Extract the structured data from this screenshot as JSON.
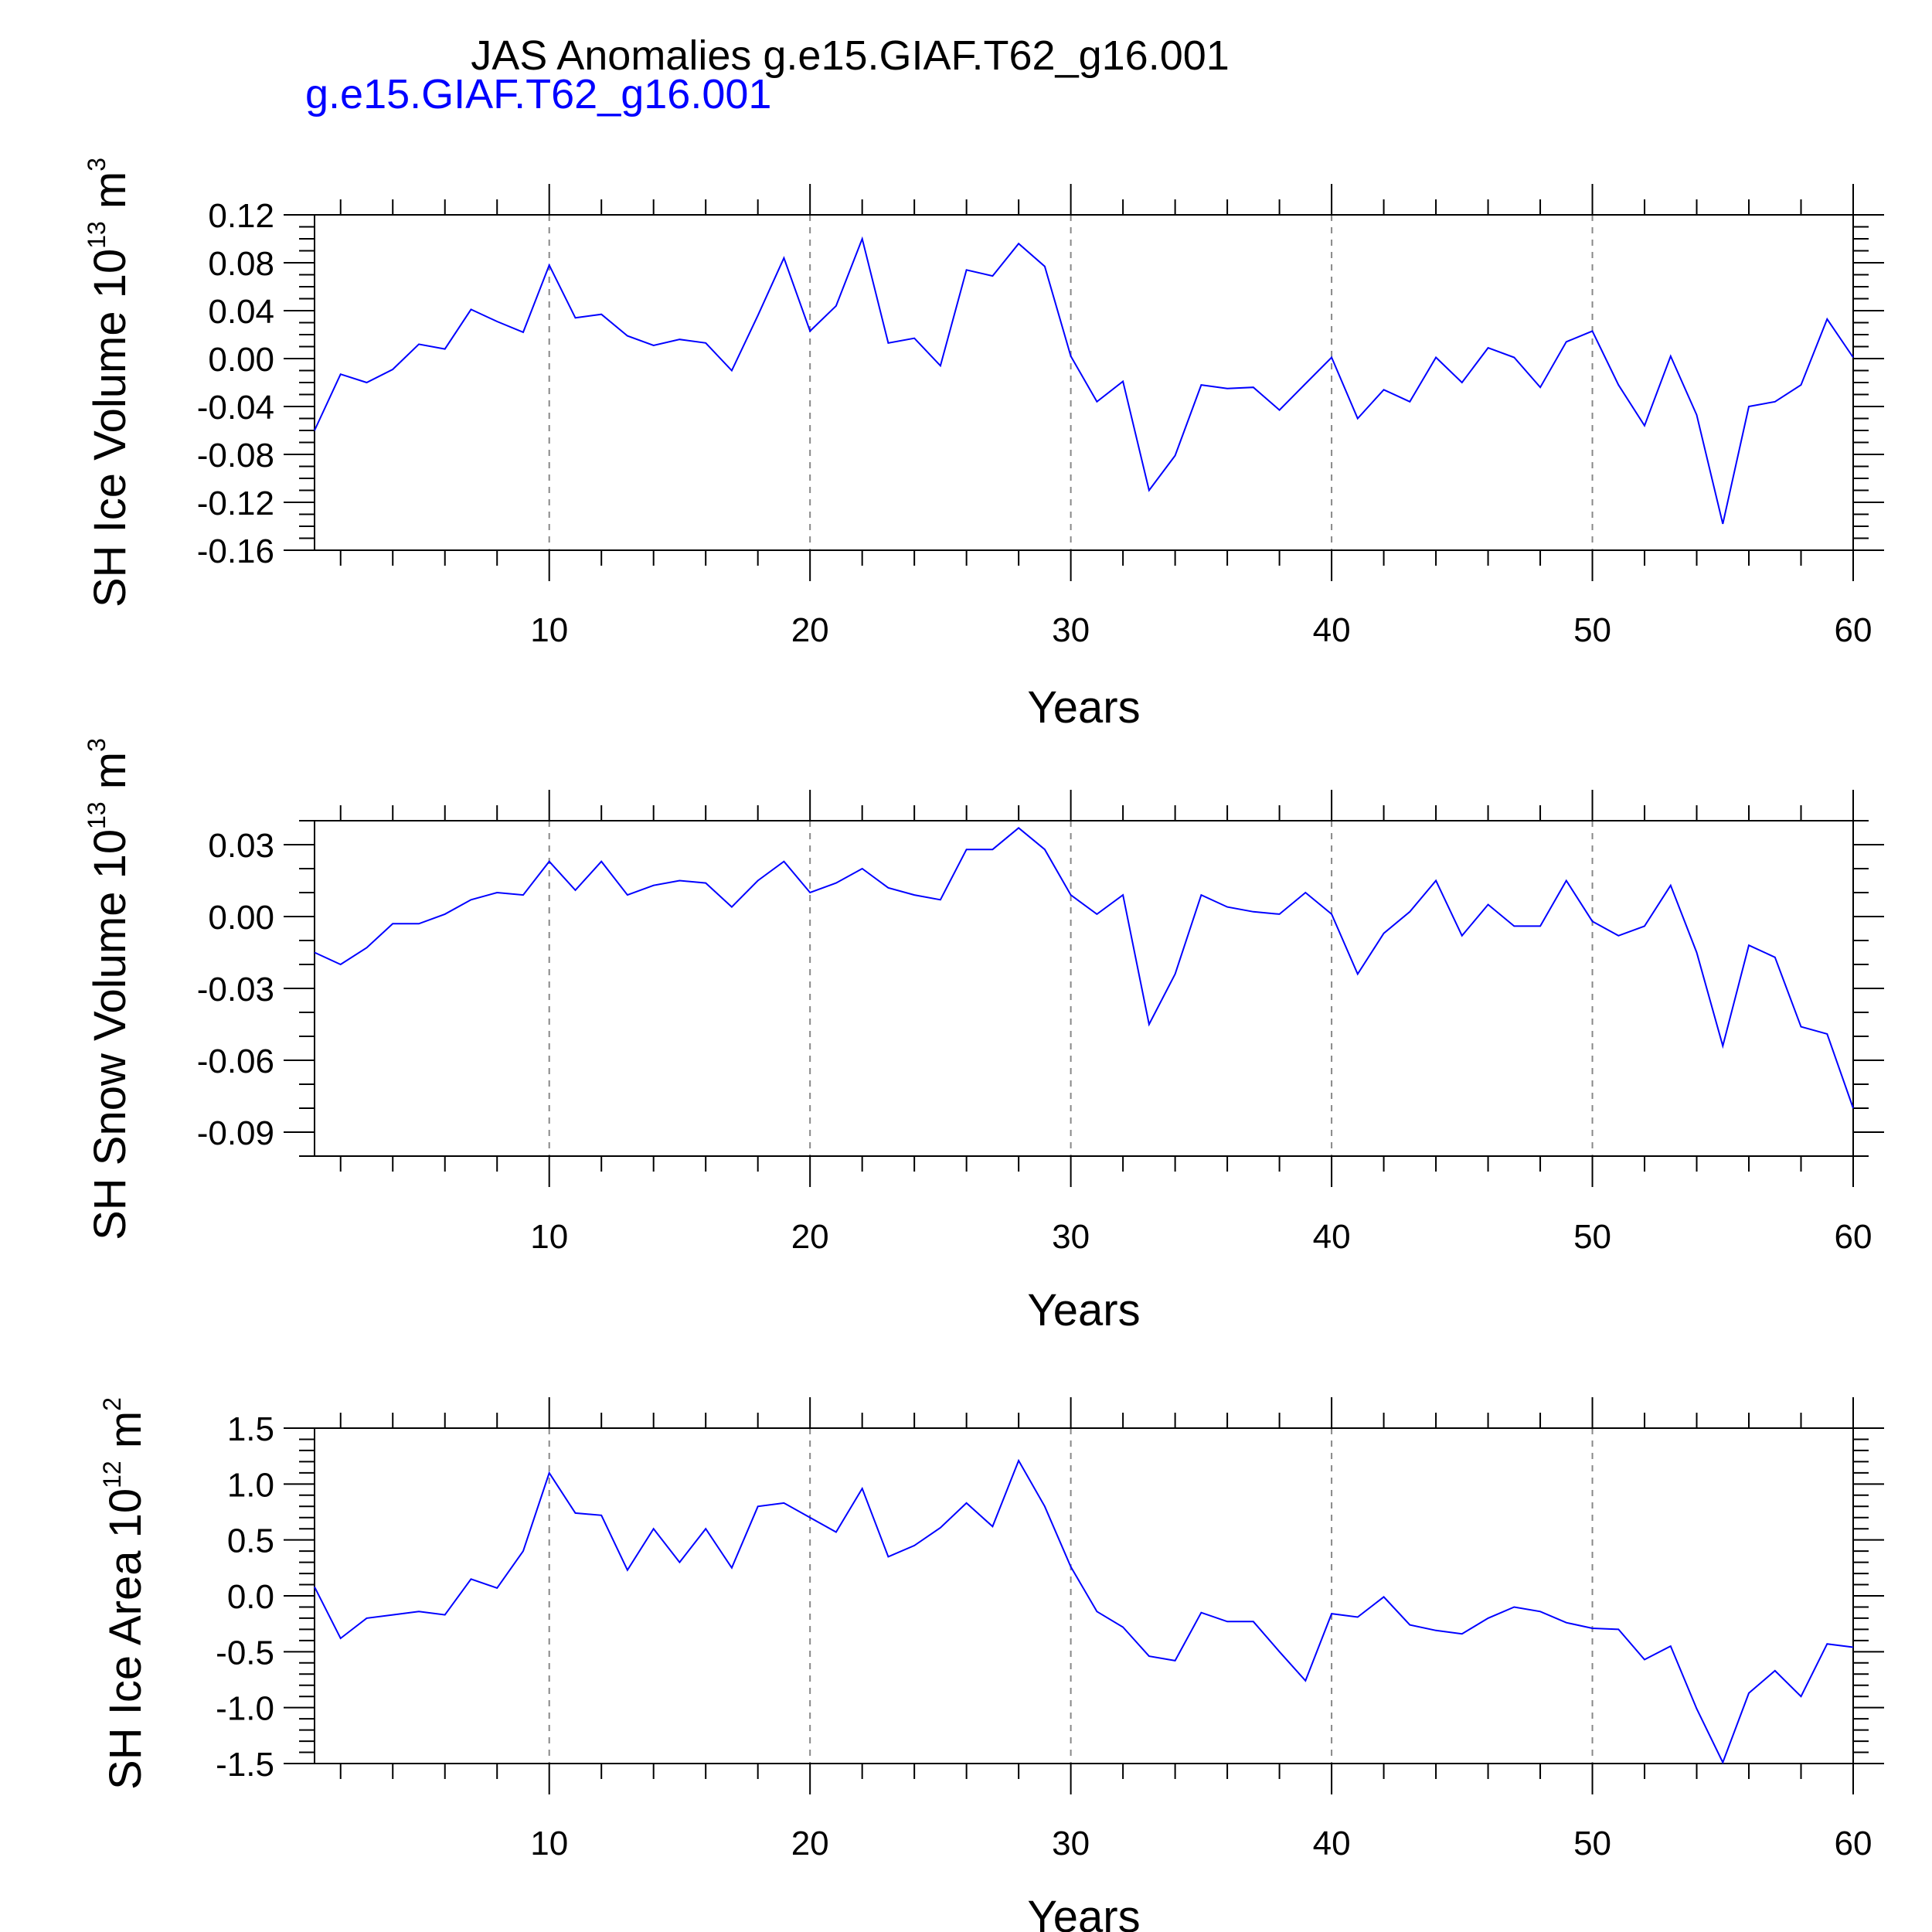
{
  "title": "JAS Anomalies g.e15.GIAF.T62_g16.001",
  "legend": {
    "text": "g.e15.GIAF.T62_g16.001",
    "color": "#0000ff"
  },
  "line_color": "#0000ff",
  "chart_data": [
    {
      "type": "line",
      "ylabel": {
        "main": "SH Ice Volume 10",
        "exp": "13",
        "unit": " m",
        "unit_exp": "3"
      },
      "xlabel": "Years",
      "xlim": [
        1,
        60
      ],
      "x_ticks": [
        10,
        20,
        30,
        40,
        50,
        60
      ],
      "ylim": [
        -0.16,
        0.12
      ],
      "y_ticks": [
        0.12,
        0.08,
        0.04,
        0.0,
        -0.04,
        -0.08,
        -0.12,
        -0.16
      ],
      "y_tick_labels": [
        "0.12",
        "0.08",
        "0.04",
        "0.00",
        "-0.04",
        "-0.08",
        "-0.12",
        "-0.16"
      ],
      "y_minor_step": 0.01,
      "series": [
        {
          "name": "g.e15.GIAF.T62_g16.001",
          "x": [
            1,
            2,
            3,
            4,
            5,
            6,
            7,
            8,
            9,
            10,
            11,
            12,
            13,
            14,
            15,
            16,
            17,
            18,
            19,
            20,
            21,
            22,
            23,
            24,
            25,
            26,
            27,
            28,
            29,
            30,
            31,
            32,
            33,
            34,
            35,
            36,
            37,
            38,
            39,
            40,
            41,
            42,
            43,
            44,
            45,
            46,
            47,
            48,
            49,
            50,
            51,
            52,
            53,
            54,
            55,
            56,
            57,
            58,
            59,
            60
          ],
          "values": [
            -0.06,
            -0.013,
            -0.02,
            -0.009,
            0.012,
            0.008,
            0.041,
            0.031,
            0.022,
            0.078,
            0.034,
            0.037,
            0.019,
            0.011,
            0.016,
            0.013,
            -0.01,
            0.036,
            0.084,
            0.023,
            0.044,
            0.1,
            0.013,
            0.017,
            -0.006,
            0.074,
            0.069,
            0.096,
            0.077,
            0.002,
            -0.036,
            -0.019,
            -0.11,
            -0.081,
            -0.022,
            -0.025,
            -0.024,
            -0.043,
            -0.021,
            0.001,
            -0.05,
            -0.026,
            -0.036,
            0.001,
            -0.02,
            0.009,
            0.001,
            -0.024,
            0.014,
            0.023,
            -0.022,
            -0.056,
            0.002,
            -0.047,
            -0.138,
            -0.04,
            -0.036,
            -0.022,
            0.033,
            0.001
          ]
        }
      ]
    },
    {
      "type": "line",
      "ylabel": {
        "main": "SH Snow Volume 10",
        "exp": "13",
        "unit": " m",
        "unit_exp": "3"
      },
      "xlabel": "Years",
      "xlim": [
        1,
        60
      ],
      "x_ticks": [
        10,
        20,
        30,
        40,
        50,
        60
      ],
      "ylim": [
        -0.1,
        0.04
      ],
      "y_ticks": [
        0.03,
        0.0,
        -0.03,
        -0.06,
        -0.09
      ],
      "y_tick_labels": [
        "0.03",
        "0.00",
        "-0.03",
        "-0.06",
        "-0.09"
      ],
      "y_minor_step": 0.01,
      "series": [
        {
          "name": "g.e15.GIAF.T62_g16.001",
          "x": [
            1,
            2,
            3,
            4,
            5,
            6,
            7,
            8,
            9,
            10,
            11,
            12,
            13,
            14,
            15,
            16,
            17,
            18,
            19,
            20,
            21,
            22,
            23,
            24,
            25,
            26,
            27,
            28,
            29,
            30,
            31,
            32,
            33,
            34,
            35,
            36,
            37,
            38,
            39,
            40,
            41,
            42,
            43,
            44,
            45,
            46,
            47,
            48,
            49,
            50,
            51,
            52,
            53,
            54,
            55,
            56,
            57,
            58,
            59,
            60
          ],
          "values": [
            -0.015,
            -0.02,
            -0.013,
            -0.003,
            -0.003,
            0.001,
            0.007,
            0.01,
            0.009,
            0.023,
            0.011,
            0.023,
            0.009,
            0.013,
            0.015,
            0.014,
            0.004,
            0.015,
            0.023,
            0.01,
            0.014,
            0.02,
            0.012,
            0.009,
            0.007,
            0.028,
            0.028,
            0.037,
            0.028,
            0.009,
            0.001,
            0.009,
            -0.045,
            -0.024,
            0.009,
            0.004,
            0.002,
            0.001,
            0.01,
            0.001,
            -0.024,
            -0.007,
            0.002,
            0.015,
            -0.008,
            0.005,
            -0.004,
            -0.004,
            0.015,
            -0.002,
            -0.008,
            -0.004,
            0.013,
            -0.015,
            -0.054,
            -0.012,
            -0.017,
            -0.046,
            -0.049,
            -0.08
          ]
        }
      ]
    },
    {
      "type": "line",
      "ylabel": {
        "main": "SH Ice Area 10",
        "exp": "12",
        "unit": " m",
        "unit_exp": "2"
      },
      "xlabel": "Years",
      "xlim": [
        1,
        60
      ],
      "x_ticks": [
        10,
        20,
        30,
        40,
        50,
        60
      ],
      "ylim": [
        -1.5,
        1.5
      ],
      "y_ticks": [
        1.5,
        1.0,
        0.5,
        0.0,
        -0.5,
        -1.0,
        -1.5
      ],
      "y_tick_labels": [
        "1.5",
        "1.0",
        "0.5",
        "0.0",
        "-0.5",
        "-1.0",
        "-1.5"
      ],
      "y_minor_step": 0.1,
      "series": [
        {
          "name": "g.e15.GIAF.T62_g16.001",
          "x": [
            1,
            2,
            3,
            4,
            5,
            6,
            7,
            8,
            9,
            10,
            11,
            12,
            13,
            14,
            15,
            16,
            17,
            18,
            19,
            20,
            21,
            22,
            23,
            24,
            25,
            26,
            27,
            28,
            29,
            30,
            31,
            32,
            33,
            34,
            35,
            36,
            37,
            38,
            39,
            40,
            41,
            42,
            43,
            44,
            45,
            46,
            47,
            48,
            49,
            50,
            51,
            52,
            53,
            54,
            55,
            56,
            57,
            58,
            59,
            60
          ],
          "values": [
            0.08,
            -0.38,
            -0.2,
            -0.17,
            -0.14,
            -0.17,
            0.15,
            0.07,
            0.4,
            1.1,
            0.74,
            0.72,
            0.23,
            0.6,
            0.3,
            0.6,
            0.25,
            0.8,
            0.83,
            0.7,
            0.57,
            0.96,
            0.35,
            0.45,
            0.61,
            0.83,
            0.62,
            1.21,
            0.8,
            0.26,
            -0.14,
            -0.28,
            -0.54,
            -0.58,
            -0.15,
            -0.23,
            -0.23,
            -0.5,
            -0.76,
            -0.16,
            -0.19,
            -0.01,
            -0.26,
            -0.31,
            -0.34,
            -0.2,
            -0.1,
            -0.14,
            -0.24,
            -0.29,
            -0.3,
            -0.57,
            -0.45,
            -1.01,
            -1.49,
            -0.87,
            -0.67,
            -0.9,
            -0.43,
            -0.46
          ]
        }
      ]
    }
  ]
}
